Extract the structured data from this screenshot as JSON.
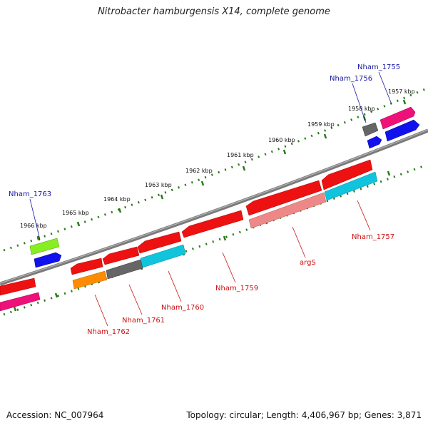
{
  "title": "Nitrobacter hamburgensis X14, complete genome",
  "footer": {
    "accession": "Accession: NC_007964",
    "stats": "Topology: circular; Length: 4,406,967 bp; Genes: 3,871"
  },
  "tick_labels": [
    "1966 kbp",
    "1965 kbp",
    "1964 kbp",
    "1963 kbp",
    "1962 kbp",
    "1961 kbp",
    "1960 kbp",
    "1959 kbp",
    "1958 kbp",
    "1957 kbp"
  ],
  "forward_labels": [
    "Nham_1763",
    "Nham_1756",
    "Nham_1755"
  ],
  "reverse_labels": [
    "Nham_1762",
    "Nham_1761",
    "Nham_1760",
    "Nham_1759",
    "argS",
    "Nham_1757"
  ],
  "colors": {
    "forward_label": "#1a1aa6",
    "reverse_label": "#cc1111",
    "backbone": "#7a7a7a",
    "ticks": "#2a7a1a",
    "red": "#ee1111",
    "gray": "#666666",
    "cyan": "#11c4dd",
    "salmon": "#ee8888",
    "orange": "#ff8c00",
    "magenta": "#ee1177",
    "green": "#88ee22",
    "blue": "#1111ee"
  }
}
